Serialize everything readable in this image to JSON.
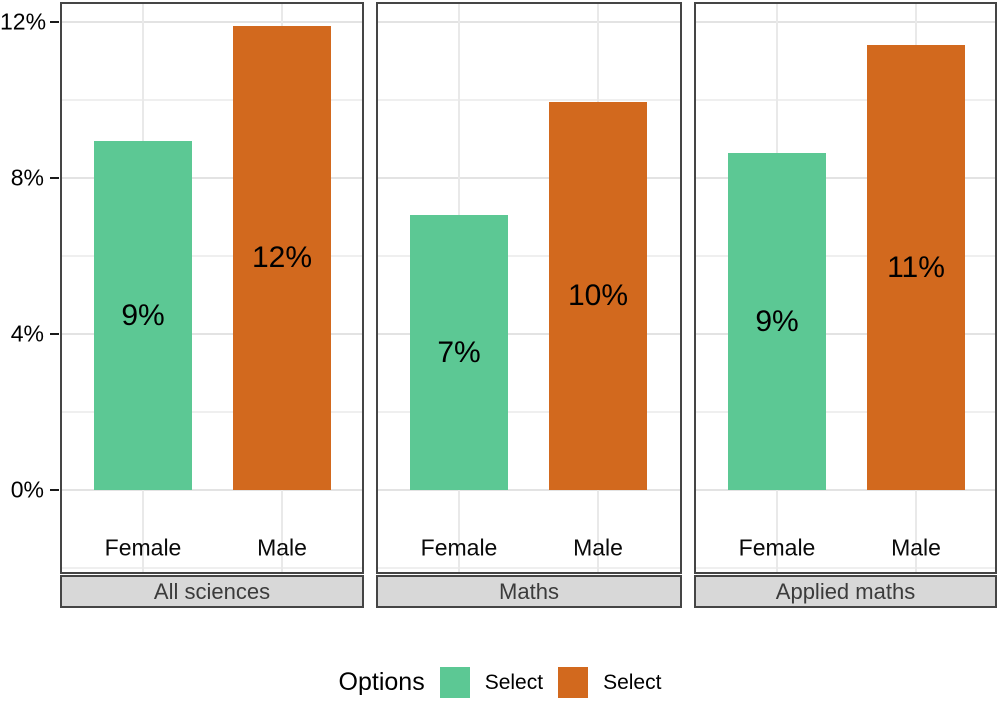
{
  "chart_data": {
    "type": "bar",
    "title": "",
    "faceted": true,
    "categories": [
      "Female",
      "Male"
    ],
    "ylabel": "",
    "ylim": [
      -2.2,
      12.5
    ],
    "grid": true,
    "y_ticks": [
      {
        "label": "0%",
        "value": 0
      },
      {
        "label": "4%",
        "value": 4
      },
      {
        "label": "8%",
        "value": 8
      },
      {
        "label": "12%",
        "value": 12
      }
    ],
    "major_gridlines": [
      0,
      4,
      8,
      12
    ],
    "minor_gridlines": [
      -2,
      2,
      6,
      10
    ],
    "colors": {
      "female": "#5cc894",
      "male": "#d2691e"
    },
    "facets": [
      {
        "strip_label": "All sciences",
        "bars": [
          {
            "category": "Female",
            "series": "female",
            "value": 8.95,
            "label": "9%"
          },
          {
            "category": "Male",
            "series": "male",
            "value": 11.9,
            "label": "12%"
          }
        ]
      },
      {
        "strip_label": "Maths",
        "bars": [
          {
            "category": "Female",
            "series": "female",
            "value": 7.05,
            "label": "7%"
          },
          {
            "category": "Male",
            "series": "male",
            "value": 9.95,
            "label": "10%"
          }
        ]
      },
      {
        "strip_label": "Applied maths",
        "bars": [
          {
            "category": "Female",
            "series": "female",
            "value": 8.65,
            "label": "9%"
          },
          {
            "category": "Male",
            "series": "male",
            "value": 11.4,
            "label": "11%"
          }
        ]
      }
    ],
    "legend": {
      "position": "bottom",
      "title": "Options",
      "entries": [
        {
          "label": "Select",
          "color": "#5cc894",
          "series": "female"
        },
        {
          "label": "Select",
          "color": "#d2691e",
          "series": "male"
        }
      ]
    }
  }
}
